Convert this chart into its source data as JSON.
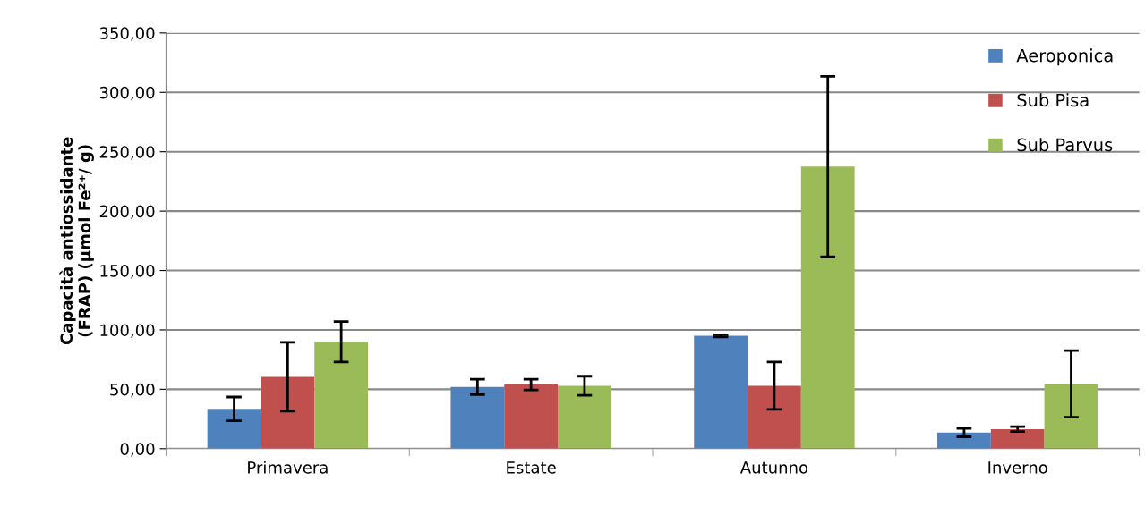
{
  "chart_data": {
    "type": "bar",
    "ylabel": "Capacità antiossidante\n(FRAP) (µmol Fe²⁺/ g)",
    "categories": [
      "Primavera",
      "Estate",
      "Autunno",
      "Inverno"
    ],
    "series": [
      {
        "name": "Aeroponica",
        "color": "#4f81bd",
        "values": [
          33.5,
          52,
          95,
          13.5
        ],
        "errors": [
          10,
          6.5,
          1,
          3.5
        ]
      },
      {
        "name": "Sub Pisa",
        "color": "#c0504d",
        "values": [
          60.5,
          54,
          53,
          16.5
        ],
        "errors": [
          29,
          4.5,
          20,
          2
        ]
      },
      {
        "name": "Sub Parvus",
        "color": "#9bbb59",
        "values": [
          90,
          53,
          237.5,
          54.5
        ],
        "errors": [
          17,
          8,
          76,
          28
        ]
      }
    ],
    "ylim": [
      0,
      350
    ],
    "yticks": [
      {
        "value": 0,
        "label": "0,00"
      },
      {
        "value": 50,
        "label": "50,00"
      },
      {
        "value": 100,
        "label": "100,00"
      },
      {
        "value": 150,
        "label": "150,00"
      },
      {
        "value": 200,
        "label": "200,00"
      },
      {
        "value": 250,
        "label": "250,00"
      },
      {
        "value": 300,
        "label": "300,00"
      },
      {
        "value": 350,
        "label": "350,00"
      }
    ],
    "grid": "y",
    "legend": "top right"
  }
}
